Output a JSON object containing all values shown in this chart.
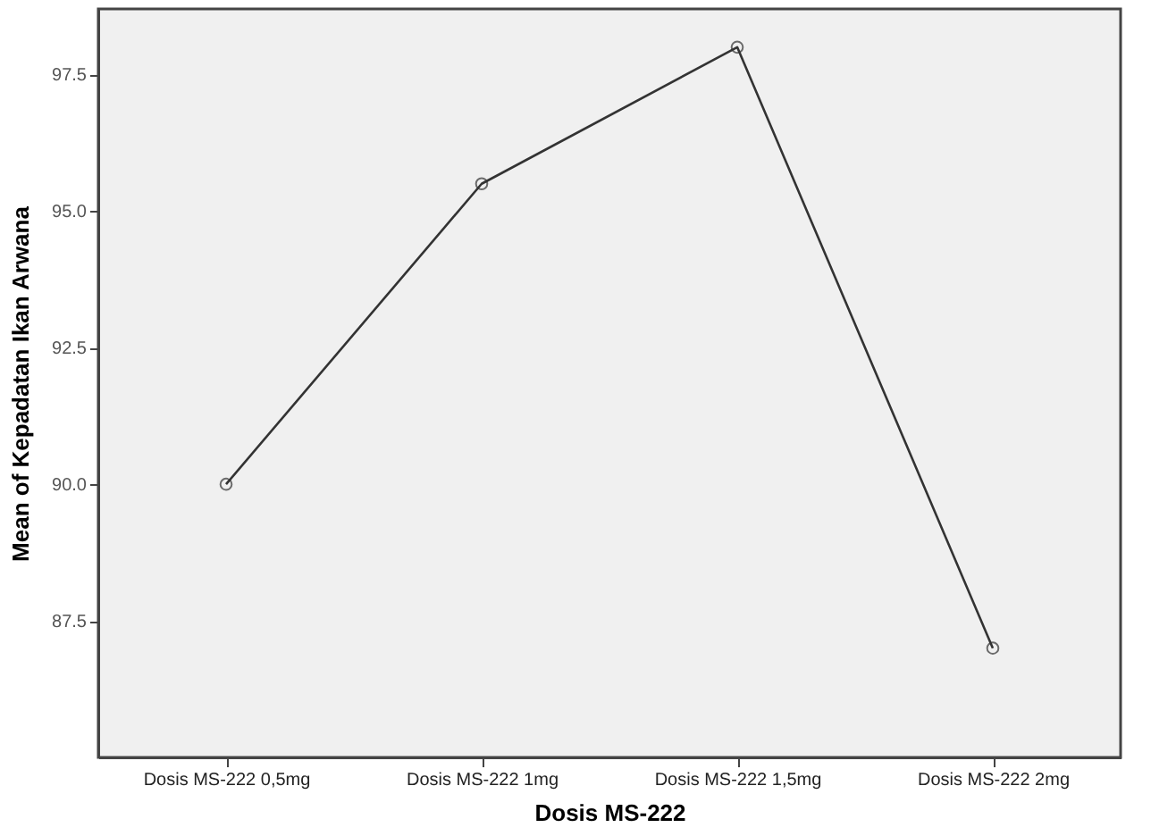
{
  "chart_data": {
    "type": "line",
    "xlabel": "Dosis MS-222",
    "ylabel": "Mean of Kepadatan Ikan Arwana",
    "categories": [
      "Dosis MS-222 0,5mg",
      "Dosis MS-222 1mg",
      "Dosis MS-222 1,5mg",
      "Dosis MS-222 2mg"
    ],
    "series": [
      {
        "color": "#333333",
        "values": [
          90.0,
          95.5,
          98.0,
          87.0
        ]
      }
    ],
    "ylim": [
      85.0,
      98.7
    ],
    "yticks": [
      {
        "value": 87.5,
        "label": "87.5"
      },
      {
        "value": 90,
        "label": "90.0"
      },
      {
        "value": 92.5,
        "label": "92.5"
      },
      {
        "value": 95,
        "label": "95.0"
      },
      {
        "value": 97.5,
        "label": "97.5"
      }
    ],
    "grid": false,
    "legend": false,
    "marker": "circle",
    "line_style": "solid"
  }
}
